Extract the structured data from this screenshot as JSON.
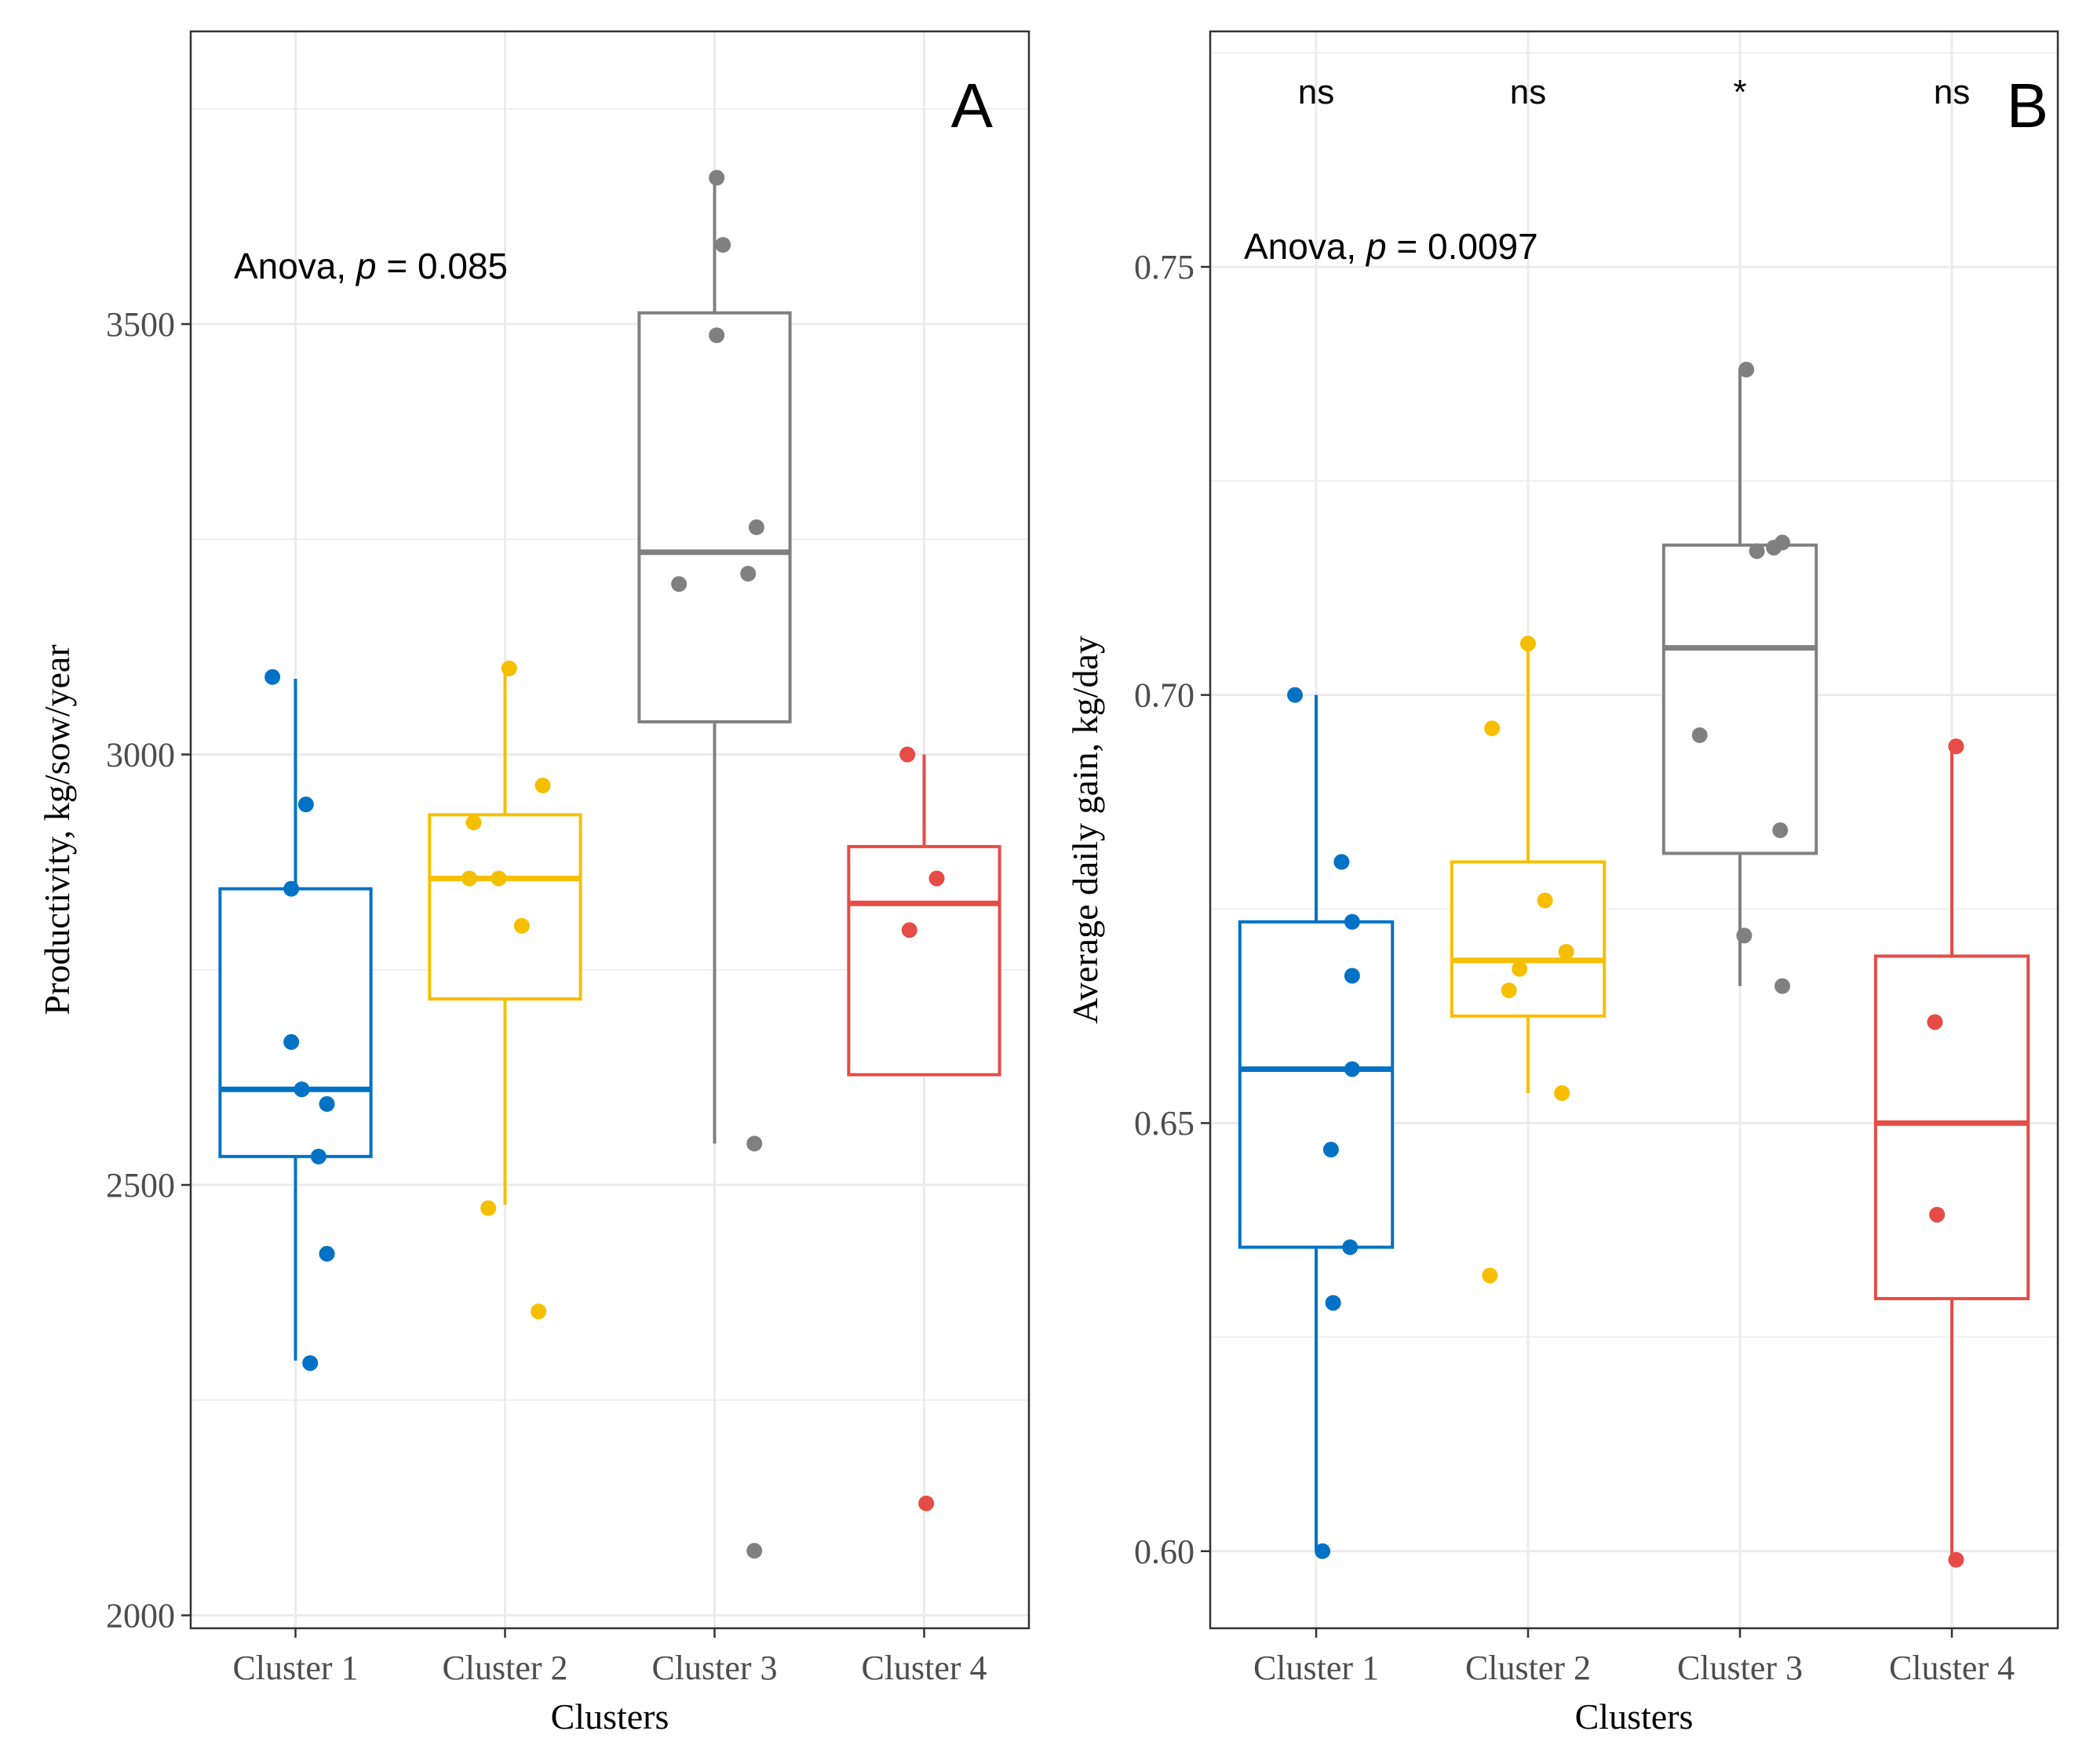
{
  "chart_data": [
    {
      "type": "box",
      "panel_label": "A",
      "xlabel": "Clusters",
      "ylabel": "Productivity, kg/sow/year",
      "categories": [
        "Cluster 1",
        "Cluster 2",
        "Cluster 3",
        "Cluster 4"
      ],
      "ylim": [
        1985,
        3840
      ],
      "yticks": [
        2000,
        2500,
        3000,
        3500
      ],
      "ytick_labels": [
        "2000",
        "2500",
        "3000",
        "3500"
      ],
      "grid": true,
      "annotation": {
        "prefix": "Anova, ",
        "p_symbol": "p",
        "value": " = 0.085"
      },
      "significance": [],
      "boxes": [
        {
          "q1": 2533,
          "median": 2611,
          "q3": 2844,
          "whisker_low": 2296,
          "whisker_high": 3088
        },
        {
          "q1": 2716,
          "median": 2856,
          "q3": 2930,
          "whisker_low": 2477,
          "whisker_high": 3100
        },
        {
          "q1": 3038,
          "median": 3235,
          "q3": 3513,
          "whisker_low": 2548,
          "whisker_high": 3670
        },
        {
          "q1": 2628,
          "median": 2827,
          "q3": 2893,
          "whisker_low": 2628,
          "whisker_high": 3000
        }
      ],
      "points": [
        [
          [
            -0.11,
            3090
          ],
          [
            -0.02,
            2844
          ],
          [
            0.05,
            2942
          ],
          [
            -0.02,
            2666
          ],
          [
            0.03,
            2611
          ],
          [
            0.15,
            2594
          ],
          [
            0.11,
            2533
          ],
          [
            0.15,
            2420
          ],
          [
            0.07,
            2293
          ]
        ],
        [
          [
            -0.15,
            2921
          ],
          [
            -0.17,
            2856
          ],
          [
            -0.03,
            2856
          ],
          [
            0.18,
            2964
          ],
          [
            0.08,
            2801
          ],
          [
            -0.08,
            2473
          ],
          [
            0.16,
            2353
          ],
          [
            0.02,
            3100
          ]
        ],
        [
          [
            0.01,
            3670
          ],
          [
            0.04,
            3592
          ],
          [
            0.01,
            3487
          ],
          [
            0.2,
            3264
          ],
          [
            0.16,
            3210
          ],
          [
            -0.17,
            3198
          ],
          [
            0.19,
            2548
          ],
          [
            0.19,
            2075
          ]
        ],
        [
          [
            -0.08,
            3000
          ],
          [
            0.06,
            2856
          ],
          [
            -0.07,
            2796
          ],
          [
            0.01,
            2130
          ]
        ]
      ]
    },
    {
      "type": "box",
      "panel_label": "B",
      "xlabel": "Clusters",
      "ylabel": "Average daily gain, kg/day",
      "categories": [
        "Cluster 1",
        "Cluster 2",
        "Cluster 3",
        "Cluster 4"
      ],
      "ylim": [
        0.591,
        0.7775
      ],
      "yticks": [
        0.6,
        0.65,
        0.7,
        0.75
      ],
      "ytick_labels": [
        "0.60",
        "0.65",
        "0.70",
        "0.75"
      ],
      "grid": true,
      "annotation": {
        "prefix": "Anova, ",
        "p_symbol": "p",
        "value": " = 0.0097"
      },
      "significance": [
        "ns",
        "ns",
        "*",
        "ns"
      ],
      "boxes": [
        {
          "q1": 0.6355,
          "median": 0.6563,
          "q3": 0.6735,
          "whisker_low": 0.6,
          "whisker_high": 0.7
        },
        {
          "q1": 0.6625,
          "median": 0.669,
          "q3": 0.6805,
          "whisker_low": 0.6535,
          "whisker_high": 0.706
        },
        {
          "q1": 0.6815,
          "median": 0.7055,
          "q3": 0.7175,
          "whisker_low": 0.666,
          "whisker_high": 0.738
        },
        {
          "q1": 0.6295,
          "median": 0.65,
          "q3": 0.6695,
          "whisker_low": 0.599,
          "whisker_high": 0.694
        }
      ],
      "points": [
        [
          [
            -0.1,
            0.7
          ],
          [
            0.12,
            0.6805
          ],
          [
            0.17,
            0.6735
          ],
          [
            0.17,
            0.6672
          ],
          [
            0.17,
            0.6563
          ],
          [
            0.07,
            0.6469
          ],
          [
            0.16,
            0.6355
          ],
          [
            0.08,
            0.629
          ],
          [
            0.03,
            0.6
          ]
        ],
        [
          [
            -0.17,
            0.6961
          ],
          [
            0.08,
            0.676
          ],
          [
            0.18,
            0.67
          ],
          [
            -0.04,
            0.668
          ],
          [
            -0.09,
            0.6655
          ],
          [
            0.16,
            0.6535
          ],
          [
            -0.18,
            0.6322
          ],
          [
            0.0,
            0.706
          ]
        ],
        [
          [
            -0.19,
            0.6953
          ],
          [
            0.08,
            0.7168
          ],
          [
            0.16,
            0.7172
          ],
          [
            0.2,
            0.7178
          ],
          [
            0.19,
            0.6842
          ],
          [
            0.02,
            0.6719
          ],
          [
            0.2,
            0.666
          ],
          [
            0.03,
            0.738
          ]
        ],
        [
          [
            -0.08,
            0.6618
          ],
          [
            -0.07,
            0.6393
          ],
          [
            0.02,
            0.599
          ],
          [
            0.02,
            0.694
          ]
        ]
      ]
    }
  ],
  "colors": {
    "cluster_1": "#0072c6",
    "cluster_2": "#f5bf00",
    "cluster_3": "#808080",
    "cluster_4": "#e64b45",
    "grid": "#ebebeb",
    "panel_border": "#333333",
    "axis_text": "#4d4d4d"
  }
}
